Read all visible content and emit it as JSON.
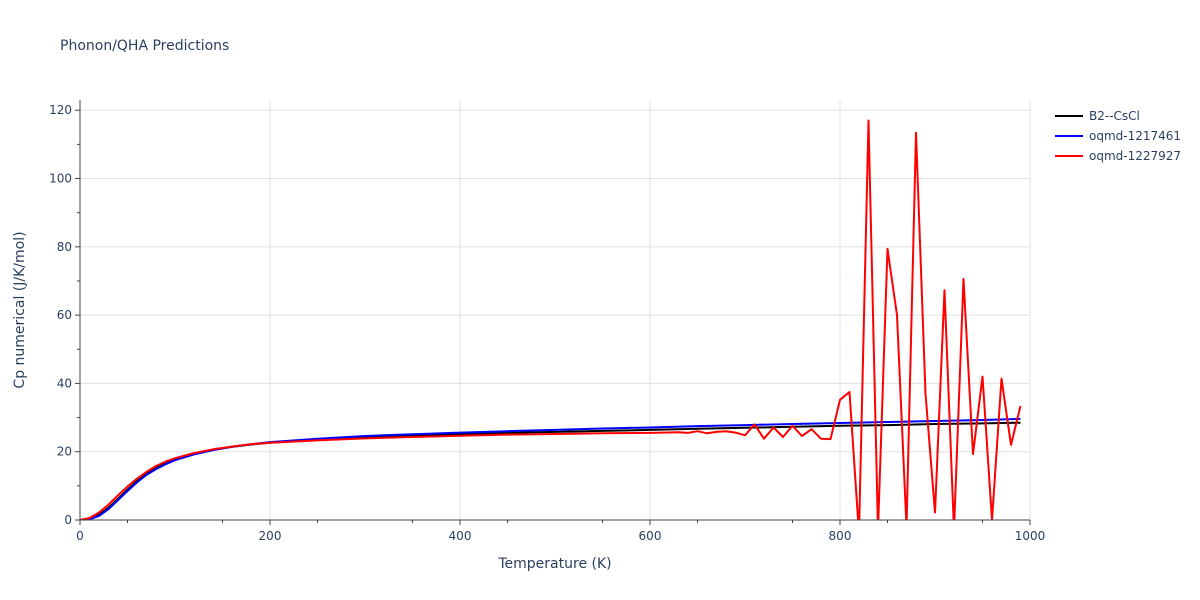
{
  "chart_data": {
    "type": "line",
    "title": "Phonon/QHA Predictions",
    "xlabel": "Temperature (K)",
    "ylabel": "Cp numerical (J/K/mol)",
    "xlim": [
      0,
      1000
    ],
    "ylim": [
      0,
      123
    ],
    "xticks": [
      0,
      200,
      400,
      600,
      800,
      1000
    ],
    "yticks": [
      0,
      20,
      40,
      60,
      80,
      100,
      120
    ],
    "grid": true,
    "legend_position": "top-right",
    "series": [
      {
        "name": "B2--CsCl",
        "color": "#000000",
        "x": [
          0,
          10,
          20,
          30,
          40,
          50,
          60,
          70,
          80,
          90,
          100,
          120,
          140,
          160,
          180,
          200,
          250,
          300,
          350,
          400,
          450,
          500,
          550,
          600,
          650,
          700,
          750,
          800,
          850,
          900,
          950,
          990
        ],
        "y": [
          0,
          0.3,
          1.5,
          3.6,
          6.2,
          8.9,
          11.4,
          13.5,
          15.2,
          16.6,
          17.7,
          19.3,
          20.5,
          21.4,
          22.1,
          22.6,
          23.5,
          24.2,
          24.7,
          25.1,
          25.5,
          25.8,
          26.1,
          26.4,
          26.7,
          27.0,
          27.3,
          27.6,
          27.8,
          28.1,
          28.3,
          28.5
        ]
      },
      {
        "name": "oqmd-1217461",
        "color": "#0000ff",
        "x": [
          0,
          10,
          20,
          30,
          40,
          50,
          60,
          70,
          80,
          90,
          100,
          120,
          140,
          160,
          180,
          200,
          250,
          300,
          350,
          400,
          450,
          500,
          550,
          600,
          650,
          700,
          750,
          800,
          850,
          900,
          950,
          990
        ],
        "y": [
          0,
          0.2,
          1.2,
          3.2,
          5.8,
          8.5,
          11.0,
          13.2,
          14.9,
          16.3,
          17.5,
          19.2,
          20.5,
          21.5,
          22.2,
          22.8,
          23.8,
          24.6,
          25.1,
          25.6,
          26.0,
          26.4,
          26.8,
          27.1,
          27.5,
          27.8,
          28.1,
          28.4,
          28.7,
          29.0,
          29.3,
          29.6
        ]
      },
      {
        "name": "oqmd-1227927",
        "color": "#ff0000",
        "x": [
          0,
          10,
          20,
          30,
          40,
          50,
          60,
          70,
          80,
          90,
          100,
          120,
          140,
          160,
          180,
          200,
          250,
          300,
          350,
          400,
          450,
          500,
          550,
          600,
          630,
          640,
          650,
          660,
          670,
          680,
          690,
          700,
          710,
          720,
          730,
          740,
          750,
          760,
          770,
          780,
          790,
          800,
          810,
          820,
          830,
          840,
          850,
          860,
          870,
          880,
          890,
          900,
          910,
          920,
          930,
          940,
          950,
          960,
          970,
          980,
          990
        ],
        "y": [
          0,
          0.6,
          2.2,
          4.5,
          7.2,
          9.8,
          12.1,
          14.1,
          15.8,
          17.1,
          18.1,
          19.6,
          20.7,
          21.5,
          22.2,
          22.6,
          23.3,
          23.9,
          24.3,
          24.7,
          25.0,
          25.2,
          25.4,
          25.5,
          25.7,
          25.5,
          26.0,
          25.4,
          25.8,
          26.0,
          25.6,
          24.8,
          28.0,
          23.8,
          27.1,
          24.3,
          27.6,
          24.6,
          26.6,
          23.8,
          23.7,
          35.2,
          37.5,
          -4.0,
          117.0,
          -3.0,
          79.4,
          60.0,
          -2.0,
          113.4,
          37.0,
          2.2,
          67.3,
          -3.0,
          70.6,
          19.3,
          42.0,
          0.0,
          41.4,
          22.0,
          33.4
        ]
      }
    ]
  }
}
